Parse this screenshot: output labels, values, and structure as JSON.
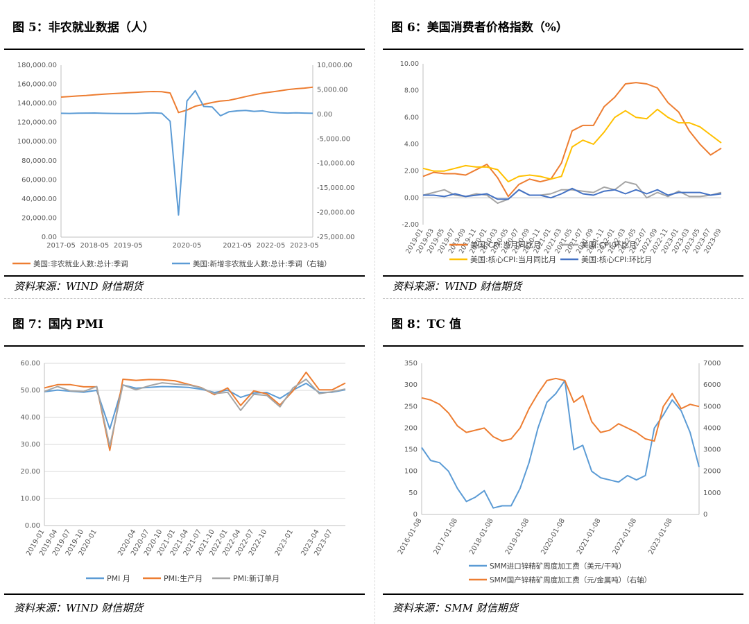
{
  "panels": [
    {
      "title": "图 5：非农就业数据（人）",
      "source": "资料来源：WIND 财信期货",
      "chart_data": {
        "type": "line",
        "x": [
          "2017-05",
          "2017-08",
          "2017-11",
          "2018-02",
          "2018-05",
          "2018-08",
          "2018-11",
          "2019-02",
          "2019-05",
          "2019-08",
          "2019-11",
          "2020-01",
          "2020-02",
          "2020-03",
          "2020-04",
          "2020-05",
          "2020-06",
          "2020-07",
          "2020-08",
          "2020-11",
          "2021-02",
          "2021-05",
          "2021-08",
          "2021-11",
          "2022-02",
          "2022-05",
          "2022-08",
          "2022-11",
          "2023-02",
          "2023-05",
          "2023-08"
        ],
        "x_tick_labels": [
          "2017-05",
          "2018-05",
          "2019-05",
          "2020-05",
          "2021-05",
          "2022-05",
          "2023-05"
        ],
        "series": [
          {
            "name": "美国:非农就业人数:总计:季调",
            "axis": "left",
            "color": "#ED7D31",
            "values": [
              146600,
              147200,
              147800,
              148300,
              149000,
              149600,
              150200,
              150600,
              151100,
              151600,
              152100,
              152400,
              152300,
              150900,
              130400,
              133000,
              137000,
              139000,
              140900,
              142500,
              143200,
              145100,
              147100,
              149000,
              150700,
              151900,
              153100,
              154400,
              155300,
              156000,
              156900
            ]
          },
          {
            "name": "美国:新增非农就业人数:总计:季调（右轴）",
            "axis": "right",
            "color": "#5B9BD5",
            "values": [
              200,
              180,
              220,
              250,
              260,
              200,
              180,
              150,
              170,
              160,
              250,
              300,
              200,
              -1400,
              -20500,
              2700,
              4800,
              1600,
              1500,
              -300,
              500,
              700,
              800,
              600,
              700,
              400,
              300,
              250,
              300,
              250,
              200
            ]
          }
        ],
        "y_left": {
          "min": 0,
          "max": 180000,
          "ticks": [
            "0.00",
            "20,000.00",
            "40,000.00",
            "60,000.00",
            "80,000.00",
            "100,000.00",
            "120,000.00",
            "140,000.00",
            "160,000.00",
            "180,000.00"
          ]
        },
        "y_right": {
          "min": -25000,
          "max": 10000,
          "ticks": [
            "-25,000.00",
            "-20,000.00",
            "-15,000.00",
            "-10,000.00",
            "-5,000.00",
            "0.00",
            "5,000.00",
            "10,000.00"
          ]
        },
        "legend": [
          "美国:非农就业人数:总计:季调",
          "美国:新增非农就业人数:总计:季调（右轴）"
        ],
        "legend_position": "bottom"
      }
    },
    {
      "title": "图 6：美国消费者价格指数（%）",
      "source": "资料来源：WIND 财信期货",
      "chart_data": {
        "type": "line",
        "x": [
          "2019-01",
          "2019-03",
          "2019-05",
          "2019-07",
          "2019-09",
          "2019-11",
          "2020-01",
          "2020-03",
          "2020-05",
          "2020-07",
          "2020-09",
          "2020-11",
          "2021-01",
          "2021-03",
          "2021-05",
          "2021-07",
          "2021-09",
          "2021-11",
          "2022-01",
          "2022-03",
          "2022-05",
          "2022-07",
          "2022-09",
          "2022-11",
          "2023-01",
          "2023-03",
          "2023-05",
          "2023-07",
          "2023-09"
        ],
        "x_tick_labels": [
          "2019-01",
          "2019-03",
          "2019-05",
          "2019-07",
          "2019-09",
          "2019-11",
          "2020-01",
          "2020-03",
          "2020-05",
          "2020-07",
          "2020-09",
          "2020-11",
          "2021-01",
          "2021-03",
          "2021-05",
          "2021-07",
          "2021-09",
          "2021-11",
          "2022-01",
          "2022-03",
          "2022-05",
          "2022-07",
          "2022-09",
          "2022-11",
          "2023-01",
          "2023-03",
          "2023-05",
          "2023-07",
          "2023-09"
        ],
        "series": [
          {
            "name": "美国:CPI:当月同比月",
            "color": "#ED7D31",
            "values": [
              1.6,
              1.9,
              1.8,
              1.8,
              1.7,
              2.1,
              2.5,
              1.5,
              0.1,
              1.0,
              1.4,
              1.2,
              1.4,
              2.6,
              5.0,
              5.4,
              5.4,
              6.8,
              7.5,
              8.5,
              8.6,
              8.5,
              8.2,
              7.1,
              6.4,
              5.0,
              4.0,
              3.2,
              3.7
            ]
          },
          {
            "name": "美国:CPI:环比月",
            "color": "#A5A5A5",
            "values": [
              0.2,
              0.4,
              0.6,
              0.2,
              0.1,
              0.3,
              0.2,
              -0.4,
              -0.1,
              0.6,
              0.2,
              0.2,
              0.3,
              0.6,
              0.6,
              0.5,
              0.4,
              0.8,
              0.6,
              1.2,
              1.0,
              0.0,
              0.4,
              0.1,
              0.5,
              0.1,
              0.1,
              0.2,
              0.4
            ]
          },
          {
            "name": "美国:核心CPI:当月同比月",
            "color": "#FFC000",
            "values": [
              2.2,
              2.0,
              2.0,
              2.2,
              2.4,
              2.3,
              2.3,
              2.1,
              1.2,
              1.6,
              1.7,
              1.6,
              1.4,
              1.6,
              3.8,
              4.3,
              4.0,
              4.9,
              6.0,
              6.5,
              6.0,
              5.9,
              6.6,
              6.0,
              5.6,
              5.6,
              5.3,
              4.7,
              4.1
            ]
          },
          {
            "name": "美国:核心CPI:环比月",
            "color": "#4472C4",
            "values": [
              0.2,
              0.2,
              0.1,
              0.3,
              0.1,
              0.2,
              0.3,
              -0.1,
              -0.1,
              0.6,
              0.2,
              0.2,
              0.0,
              0.3,
              0.7,
              0.3,
              0.2,
              0.5,
              0.6,
              0.3,
              0.6,
              0.3,
              0.6,
              0.2,
              0.4,
              0.4,
              0.4,
              0.2,
              0.3
            ]
          }
        ],
        "y": {
          "min": -2,
          "max": 10,
          "ticks": [
            "-2.00",
            "0.00",
            "2.00",
            "4.00",
            "6.00",
            "8.00",
            "10.00"
          ]
        },
        "legend": [
          "美国:CPI:当月同比月",
          "美国:CPI:环比月",
          "美国:核心CPI:当月同比月",
          "美国:核心CPI:环比月"
        ],
        "legend_position": "bottom"
      }
    },
    {
      "title": "图 7：国内 PMI",
      "source": "资料来源：WIND 财信期货",
      "chart_data": {
        "type": "line",
        "x": [
          "2019-01",
          "2019-04",
          "2019-07",
          "2019-10",
          "2020-01",
          "2020-02",
          "2020-03",
          "2020-04",
          "2020-07",
          "2020-10",
          "2021-01",
          "2021-04",
          "2021-07",
          "2021-10",
          "2022-01",
          "2022-04",
          "2022-07",
          "2022-10",
          "2022-12",
          "2023-01",
          "2023-02",
          "2023-04",
          "2023-07",
          "2023-09"
        ],
        "x_tick_labels": [
          "2019-01",
          "2019-04",
          "2019-07",
          "2019-10",
          "2020-01",
          "2020-04",
          "2020-07",
          "2020-10",
          "2021-01",
          "2021-04",
          "2021-07",
          "2021-10",
          "2022-01",
          "2022-04",
          "2022-07",
          "2022-10",
          "2023-01",
          "2023-04",
          "2023-07"
        ],
        "series": [
          {
            "name": "PMI 月",
            "color": "#5B9BD5",
            "values": [
              49.5,
              50.1,
              49.7,
              49.3,
              50.0,
              35.7,
              52.0,
              50.8,
              51.1,
              51.4,
              51.3,
              51.1,
              50.4,
              49.2,
              50.1,
              47.4,
              49.0,
              49.2,
              47.0,
              50.1,
              52.6,
              49.2,
              49.3,
              50.2
            ]
          },
          {
            "name": "PMI:生产月",
            "color": "#ED7D31",
            "values": [
              50.9,
              52.1,
              52.1,
              51.3,
              51.3,
              27.8,
              54.1,
              53.7,
              54.0,
              53.9,
              53.5,
              52.2,
              51.0,
              48.4,
              50.9,
              44.4,
              49.8,
              48.7,
              44.6,
              49.8,
              56.7,
              50.2,
              50.2,
              52.7
            ]
          },
          {
            "name": "PMI:新订单月",
            "color": "#A5A5A5",
            "values": [
              49.6,
              51.4,
              49.8,
              49.6,
              51.4,
              29.3,
              52.0,
              50.2,
              51.7,
              52.8,
              52.3,
              52.0,
              50.9,
              48.8,
              49.3,
              42.6,
              48.5,
              48.1,
              43.9,
              50.9,
              54.1,
              48.8,
              49.5,
              50.5
            ]
          }
        ],
        "y": {
          "min": 0,
          "max": 60,
          "ticks": [
            "0.00",
            "10.00",
            "20.00",
            "30.00",
            "40.00",
            "50.00",
            "60.00"
          ]
        },
        "legend": [
          "PMI 月",
          "PMI:生产月",
          "PMI:新订单月"
        ],
        "legend_position": "bottom"
      }
    },
    {
      "title": "图 8：TC 值",
      "source": "资料来源：SMM 财信期货",
      "chart_data": {
        "type": "line",
        "x": [
          "2016-01-08",
          "2016-04-08",
          "2016-07-08",
          "2016-10-08",
          "2017-01-08",
          "2017-04-08",
          "2017-07-08",
          "2017-10-08",
          "2018-01-08",
          "2018-04-08",
          "2018-07-08",
          "2018-10-08",
          "2019-01-08",
          "2019-04-08",
          "2019-07-08",
          "2019-10-08",
          "2020-01-08",
          "2020-04-08",
          "2020-07-08",
          "2020-10-08",
          "2021-01-08",
          "2021-04-08",
          "2021-07-08",
          "2021-10-08",
          "2022-01-08",
          "2022-04-08",
          "2022-07-08",
          "2022-10-08",
          "2023-01-08",
          "2023-04-08",
          "2023-07-08",
          "2023-10-08"
        ],
        "x_tick_labels": [
          "2016-01-08",
          "2017-01-08",
          "2018-01-08",
          "2019-01-08",
          "2020-01-08",
          "2021-01-08",
          "2022-01-08",
          "2023-01-08"
        ],
        "series": [
          {
            "name": "SMM进口锌精矿周度加工费（美元/干吨）",
            "axis": "left",
            "color": "#5B9BD5",
            "values": [
              155,
              125,
              120,
              100,
              60,
              30,
              40,
              55,
              15,
              20,
              20,
              60,
              120,
              200,
              260,
              280,
              310,
              150,
              160,
              100,
              85,
              80,
              75,
              90,
              80,
              90,
              200,
              230,
              265,
              240,
              190,
              110
            ]
          },
          {
            "name": "SMM国产锌精矿周度加工费（元/金属吨）（右轴）",
            "axis": "right",
            "color": "#ED7D31",
            "values": [
              5400,
              5300,
              5100,
              4700,
              4100,
              3800,
              3900,
              4000,
              3600,
              3400,
              3500,
              4000,
              4900,
              5600,
              6200,
              6300,
              6200,
              5200,
              5500,
              4300,
              3800,
              3900,
              4200,
              4000,
              3800,
              3500,
              3400,
              5000,
              5600,
              4900,
              5100,
              5000
            ]
          }
        ],
        "y_left": {
          "min": 0,
          "max": 350,
          "ticks": [
            "0",
            "50",
            "100",
            "150",
            "200",
            "250",
            "300",
            "350"
          ]
        },
        "y_right": {
          "min": 0,
          "max": 7000,
          "ticks": [
            "0",
            "1000",
            "2000",
            "3000",
            "4000",
            "5000",
            "6000",
            "7000"
          ]
        },
        "legend": [
          "SMM进口锌精矿周度加工费（美元/干吨）",
          "SMM国产锌精矿周度加工费（元/金属吨）（右轴）"
        ],
        "legend_position": "bottom"
      }
    }
  ]
}
